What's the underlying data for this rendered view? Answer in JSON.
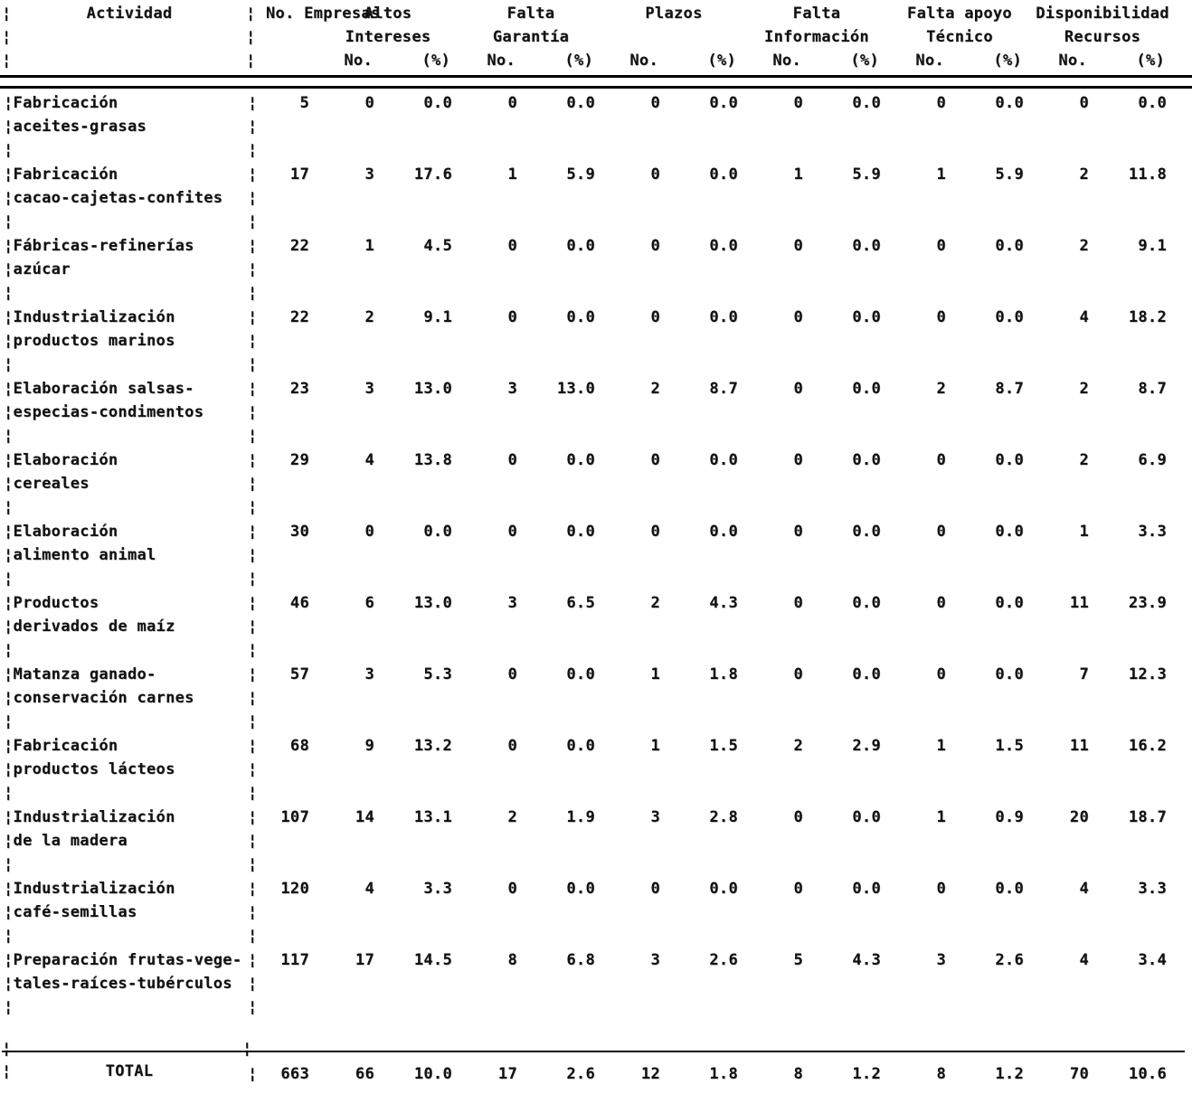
{
  "table": {
    "header": {
      "activity": "Actividad",
      "empresas": "No. Empresas",
      "sub_no": "No.",
      "sub_pct": "(%)",
      "groups": [
        {
          "line1": "Altos",
          "line2": "Intereses"
        },
        {
          "line1": "Falta",
          "line2": "Garantía"
        },
        {
          "line1": "Plazos",
          "line2": ""
        },
        {
          "line1": "Falta",
          "line2": "Información"
        },
        {
          "line1": "Falta apoyo",
          "line2": "Técnico"
        },
        {
          "line1": "Disponibilidad",
          "line2": "Recursos"
        }
      ]
    },
    "rows": [
      {
        "label1": "Fabricación",
        "label2": "aceites-grasas",
        "empresas": "5",
        "values": [
          "0",
          "0.0",
          "0",
          "0.0",
          "0",
          "0.0",
          "0",
          "0.0",
          "0",
          "0.0",
          "0",
          "0.0"
        ]
      },
      {
        "label1": "Fabricación",
        "label2": "cacao-cajetas-confites",
        "empresas": "17",
        "values": [
          "3",
          "17.6",
          "1",
          "5.9",
          "0",
          "0.0",
          "1",
          "5.9",
          "1",
          "5.9",
          "2",
          "11.8"
        ]
      },
      {
        "label1": "Fábricas-refinerías",
        "label2": "azúcar",
        "empresas": "22",
        "values": [
          "1",
          "4.5",
          "0",
          "0.0",
          "0",
          "0.0",
          "0",
          "0.0",
          "0",
          "0.0",
          "2",
          "9.1"
        ]
      },
      {
        "label1": "Industrialización",
        "label2": "productos marinos",
        "empresas": "22",
        "values": [
          "2",
          "9.1",
          "0",
          "0.0",
          "0",
          "0.0",
          "0",
          "0.0",
          "0",
          "0.0",
          "4",
          "18.2"
        ]
      },
      {
        "label1": "Elaboración salsas-",
        "label2": "especias-condimentos",
        "empresas": "23",
        "values": [
          "3",
          "13.0",
          "3",
          "13.0",
          "2",
          "8.7",
          "0",
          "0.0",
          "2",
          "8.7",
          "2",
          "8.7"
        ]
      },
      {
        "label1": "Elaboración",
        "label2": "cereales",
        "empresas": "29",
        "values": [
          "4",
          "13.8",
          "0",
          "0.0",
          "0",
          "0.0",
          "0",
          "0.0",
          "0",
          "0.0",
          "2",
          "6.9"
        ]
      },
      {
        "label1": "Elaboración",
        "label2": "alimento animal",
        "empresas": "30",
        "values": [
          "0",
          "0.0",
          "0",
          "0.0",
          "0",
          "0.0",
          "0",
          "0.0",
          "0",
          "0.0",
          "1",
          "3.3"
        ]
      },
      {
        "label1": "Productos",
        "label2": "derivados de maíz",
        "empresas": "46",
        "values": [
          "6",
          "13.0",
          "3",
          "6.5",
          "2",
          "4.3",
          "0",
          "0.0",
          "0",
          "0.0",
          "11",
          "23.9"
        ]
      },
      {
        "label1": "Matanza ganado-",
        "label2": "conservación carnes",
        "empresas": "57",
        "values": [
          "3",
          "5.3",
          "0",
          "0.0",
          "1",
          "1.8",
          "0",
          "0.0",
          "0",
          "0.0",
          "7",
          "12.3"
        ]
      },
      {
        "label1": "Fabricación",
        "label2": "productos lácteos",
        "empresas": "68",
        "values": [
          "9",
          "13.2",
          "0",
          "0.0",
          "1",
          "1.5",
          "2",
          "2.9",
          "1",
          "1.5",
          "11",
          "16.2"
        ]
      },
      {
        "label1": "Industrialización",
        "label2": "de la madera",
        "empresas": "107",
        "values": [
          "14",
          "13.1",
          "2",
          "1.9",
          "3",
          "2.8",
          "0",
          "0.0",
          "1",
          "0.9",
          "20",
          "18.7"
        ]
      },
      {
        "label1": "Industrialización",
        "label2": "café-semillas",
        "empresas": "120",
        "values": [
          "4",
          "3.3",
          "0",
          "0.0",
          "0",
          "0.0",
          "0",
          "0.0",
          "0",
          "0.0",
          "4",
          "3.3"
        ]
      },
      {
        "label1": "Preparación frutas-vege-",
        "label2": "tales-raíces-tubérculos",
        "empresas": "117",
        "values": [
          "17",
          "14.5",
          "8",
          "6.8",
          "3",
          "2.6",
          "5",
          "4.3",
          "3",
          "2.6",
          "4",
          "3.4"
        ]
      }
    ],
    "total": {
      "label": "TOTAL",
      "empresas": "663",
      "values": [
        "66",
        "10.0",
        "17",
        "2.6",
        "12",
        "1.8",
        "8",
        "1.2",
        "8",
        "1.2",
        "70",
        "10.6"
      ]
    }
  }
}
